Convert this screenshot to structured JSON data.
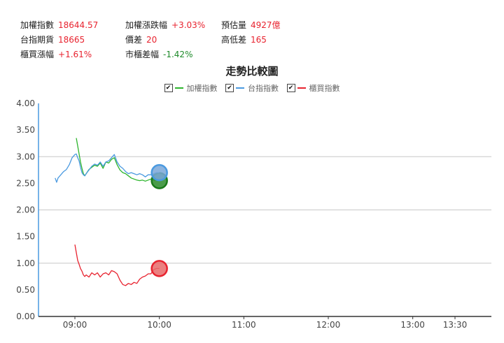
{
  "stats": {
    "taiex_label": "加權指數",
    "taiex_value": "18644.57",
    "taiex_change_label": "加權漲跌幅",
    "taiex_change_value": "+3.03%",
    "est_volume_label": "預估量",
    "est_volume_value": "4927億",
    "futures_label": "台指期貨",
    "futures_value": "18665",
    "spread_label": "價差",
    "spread_value": "20",
    "range_label": "高低差",
    "range_value": "165",
    "otc_change_label": "櫃買漲幅",
    "otc_change_value": "+1.61%",
    "otc_market_diff_label": "市櫃差幅",
    "otc_market_diff_value": "-1.42%"
  },
  "colors": {
    "up": "#e8232f",
    "down": "#1e8a2a"
  },
  "chart_data": {
    "type": "line",
    "title": "走勢比較圖",
    "x_ticks": [
      "09:00",
      "10:00",
      "11:00",
      "12:00",
      "13:00",
      "13:30"
    ],
    "y_ticks": [
      "4.00",
      "3.50",
      "3.00",
      "2.50",
      "2.00",
      "1.50",
      "1.00",
      "0.50",
      "0.00"
    ],
    "ylim": [
      0,
      4
    ],
    "x_range": [
      "08:45",
      "13:50"
    ],
    "grid": "horizontal at 3.00, 2.00, 1.00",
    "legend_position": "top-center",
    "series": [
      {
        "name": "加權指數",
        "color": "#2db52d",
        "end_marker_fill": "#2a8a2a",
        "points": [
          [
            "09:01",
            3.35
          ],
          [
            "09:02",
            3.2
          ],
          [
            "09:03",
            3.05
          ],
          [
            "09:04",
            2.9
          ],
          [
            "09:05",
            2.78
          ],
          [
            "09:06",
            2.68
          ],
          [
            "09:07",
            2.64
          ],
          [
            "09:08",
            2.68
          ],
          [
            "09:10",
            2.76
          ],
          [
            "09:12",
            2.8
          ],
          [
            "09:14",
            2.84
          ],
          [
            "09:16",
            2.82
          ],
          [
            "09:18",
            2.88
          ],
          [
            "09:20",
            2.78
          ],
          [
            "09:22",
            2.9
          ],
          [
            "09:24",
            2.88
          ],
          [
            "09:26",
            2.95
          ],
          [
            "09:28",
            2.98
          ],
          [
            "09:30",
            2.85
          ],
          [
            "09:32",
            2.75
          ],
          [
            "09:34",
            2.7
          ],
          [
            "09:36",
            2.68
          ],
          [
            "09:38",
            2.64
          ],
          [
            "09:40",
            2.6
          ],
          [
            "09:42",
            2.58
          ],
          [
            "09:44",
            2.56
          ],
          [
            "09:46",
            2.55
          ],
          [
            "09:48",
            2.56
          ],
          [
            "09:50",
            2.54
          ],
          [
            "09:52",
            2.56
          ],
          [
            "09:54",
            2.58
          ],
          [
            "09:56",
            2.56
          ],
          [
            "09:58",
            2.56
          ],
          [
            "10:00",
            2.55
          ]
        ]
      },
      {
        "name": "台指指數",
        "color": "#4a9ae0",
        "end_marker_fill": "#7aa7d8",
        "points": [
          [
            "08:46",
            2.6
          ],
          [
            "08:47",
            2.52
          ],
          [
            "08:48",
            2.6
          ],
          [
            "08:50",
            2.66
          ],
          [
            "08:52",
            2.72
          ],
          [
            "08:54",
            2.76
          ],
          [
            "08:56",
            2.85
          ],
          [
            "08:58",
            2.98
          ],
          [
            "09:00",
            3.04
          ],
          [
            "09:01",
            3.05
          ],
          [
            "09:02",
            2.98
          ],
          [
            "09:03",
            2.92
          ],
          [
            "09:04",
            2.8
          ],
          [
            "09:05",
            2.7
          ],
          [
            "09:06",
            2.66
          ],
          [
            "09:07",
            2.64
          ],
          [
            "09:08",
            2.68
          ],
          [
            "09:10",
            2.75
          ],
          [
            "09:12",
            2.82
          ],
          [
            "09:14",
            2.86
          ],
          [
            "09:16",
            2.84
          ],
          [
            "09:18",
            2.9
          ],
          [
            "09:20",
            2.82
          ],
          [
            "09:22",
            2.9
          ],
          [
            "09:24",
            2.92
          ],
          [
            "09:26",
            2.98
          ],
          [
            "09:28",
            3.04
          ],
          [
            "09:30",
            2.9
          ],
          [
            "09:32",
            2.82
          ],
          [
            "09:34",
            2.78
          ],
          [
            "09:36",
            2.72
          ],
          [
            "09:38",
            2.68
          ],
          [
            "09:40",
            2.7
          ],
          [
            "09:42",
            2.68
          ],
          [
            "09:44",
            2.66
          ],
          [
            "09:46",
            2.68
          ],
          [
            "09:48",
            2.66
          ],
          [
            "09:50",
            2.62
          ],
          [
            "09:52",
            2.66
          ],
          [
            "09:54",
            2.66
          ],
          [
            "09:56",
            2.68
          ],
          [
            "09:58",
            2.7
          ],
          [
            "10:00",
            2.7
          ]
        ]
      },
      {
        "name": "櫃買指數",
        "color": "#e8232f",
        "end_marker_fill": "#e86a6a",
        "points": [
          [
            "09:00",
            1.35
          ],
          [
            "09:01",
            1.2
          ],
          [
            "09:02",
            1.05
          ],
          [
            "09:03",
            0.98
          ],
          [
            "09:04",
            0.9
          ],
          [
            "09:05",
            0.85
          ],
          [
            "09:06",
            0.78
          ],
          [
            "09:07",
            0.75
          ],
          [
            "09:08",
            0.78
          ],
          [
            "09:10",
            0.74
          ],
          [
            "09:12",
            0.82
          ],
          [
            "09:14",
            0.78
          ],
          [
            "09:16",
            0.82
          ],
          [
            "09:18",
            0.74
          ],
          [
            "09:20",
            0.8
          ],
          [
            "09:22",
            0.82
          ],
          [
            "09:24",
            0.78
          ],
          [
            "09:26",
            0.86
          ],
          [
            "09:28",
            0.84
          ],
          [
            "09:30",
            0.8
          ],
          [
            "09:32",
            0.68
          ],
          [
            "09:34",
            0.6
          ],
          [
            "09:36",
            0.58
          ],
          [
            "09:38",
            0.62
          ],
          [
            "09:40",
            0.6
          ],
          [
            "09:42",
            0.64
          ],
          [
            "09:44",
            0.62
          ],
          [
            "09:46",
            0.7
          ],
          [
            "09:48",
            0.74
          ],
          [
            "09:50",
            0.76
          ],
          [
            "09:52",
            0.8
          ],
          [
            "09:54",
            0.8
          ],
          [
            "09:56",
            0.88
          ],
          [
            "09:58",
            0.9
          ],
          [
            "10:00",
            0.9
          ]
        ]
      }
    ]
  }
}
